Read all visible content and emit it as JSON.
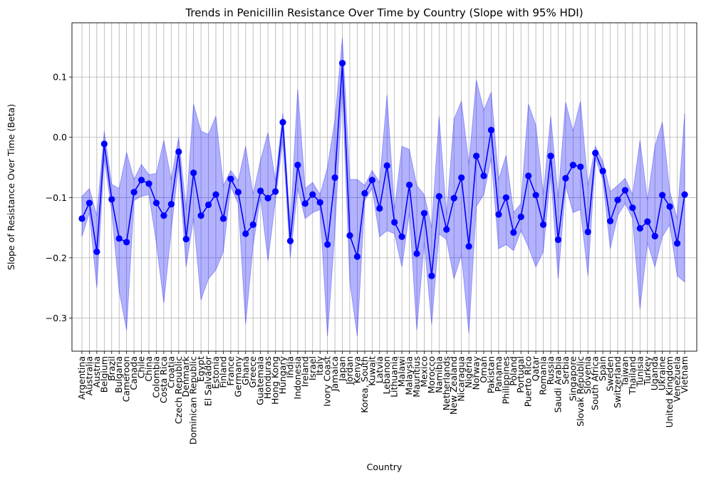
{
  "chart_data": {
    "type": "line",
    "title": "Trends in Penicillin Resistance Over Time by Country (Slope with 95% HDI)",
    "xlabel": "Country",
    "ylabel": "Slope of Resistance Over Time (Beta)",
    "ylim": [
      -0.355,
      0.19
    ],
    "yticks": [
      0.1,
      0.0,
      -0.1,
      -0.2,
      -0.3
    ],
    "ytick_labels": [
      "0.1",
      "0.0",
      "−0.1",
      "−0.2",
      "−0.3"
    ],
    "grid": true,
    "line_color": "#0000ff",
    "band_color": "#0000ff",
    "categories": [
      "Argentina",
      "Australia",
      "Austria",
      "Belgium",
      "Brazil",
      "Bulgaria",
      "Cameroon",
      "Canada",
      "Chile",
      "China",
      "Colombia",
      "Costa Rica",
      "Croatia",
      "Czech Republic",
      "Denmark",
      "Dominican Republic",
      "Egypt",
      "El Salvador",
      "Estonia",
      "Finland",
      "France",
      "Germany",
      "Ghana",
      "Greece",
      "Guatemala",
      "Honduras",
      "Hong Kong",
      "Hungary",
      "India",
      "Indonesia",
      "Ireland",
      "Israel",
      "Italy",
      "Ivory Coast",
      "Jamaica",
      "Japan",
      "Jordan",
      "Kenya",
      "Korea, South",
      "Kuwait",
      "Latvia",
      "Lebanon",
      "Lithuania",
      "Malawi",
      "Malaysia",
      "Mauritius",
      "Mexico",
      "Morocco",
      "Namibia",
      "Netherlands",
      "New Zealand",
      "Nicaragua",
      "Nigeria",
      "Norway",
      "Oman",
      "Pakistan",
      "Panama",
      "Philippines",
      "Poland",
      "Portugal",
      "Puerto Rico",
      "Qatar",
      "Romania",
      "Russia",
      "Saudi Arabia",
      "Serbia",
      "Singapore",
      "Slovak Republic",
      "Slovenia",
      "South Africa",
      "Spain",
      "Sweden",
      "Switzerland",
      "Taiwan",
      "Thailand",
      "Tunisia",
      "Turkey",
      "Uganda",
      "Ukraine",
      "United Kingdom",
      "Venezuela",
      "Vietnam"
    ],
    "series": [
      {
        "values": [
          -0.135,
          -0.109,
          -0.19,
          -0.011,
          -0.103,
          -0.168,
          -0.174,
          -0.091,
          -0.071,
          -0.077,
          -0.109,
          -0.13,
          -0.111,
          -0.024,
          -0.169,
          -0.059,
          -0.13,
          -0.112,
          -0.095,
          -0.135,
          -0.069,
          -0.091,
          -0.16,
          -0.145,
          -0.089,
          -0.101,
          -0.09,
          0.025,
          -0.172,
          -0.046,
          -0.11,
          -0.095,
          -0.108,
          -0.178,
          -0.067,
          0.123,
          -0.163,
          -0.198,
          -0.093,
          -0.071,
          -0.118,
          -0.047,
          -0.141,
          -0.165,
          -0.079,
          -0.193,
          -0.126,
          -0.23,
          -0.098,
          -0.153,
          -0.101,
          -0.067,
          -0.181,
          -0.031,
          -0.064,
          0.012,
          -0.128,
          -0.1,
          -0.158,
          -0.132,
          -0.064,
          -0.096,
          -0.145,
          -0.031,
          -0.17,
          -0.068,
          -0.046,
          -0.049,
          -0.157,
          -0.026,
          -0.056,
          -0.139,
          -0.104,
          -0.088,
          -0.117,
          -0.151,
          -0.14,
          -0.164,
          -0.096,
          -0.115,
          -0.176,
          -0.095
        ],
        "hdi_lower": [
          -0.165,
          -0.125,
          -0.25,
          -0.035,
          -0.123,
          -0.255,
          -0.32,
          -0.105,
          -0.098,
          -0.095,
          -0.175,
          -0.275,
          -0.155,
          -0.045,
          -0.215,
          -0.135,
          -0.27,
          -0.235,
          -0.22,
          -0.19,
          -0.082,
          -0.11,
          -0.31,
          -0.18,
          -0.1,
          -0.205,
          -0.105,
          -0.005,
          -0.2,
          -0.085,
          -0.135,
          -0.125,
          -0.12,
          -0.33,
          -0.155,
          0.078,
          -0.24,
          -0.33,
          -0.105,
          -0.085,
          -0.165,
          -0.155,
          -0.16,
          -0.215,
          -0.125,
          -0.32,
          -0.175,
          -0.31,
          -0.16,
          -0.17,
          -0.235,
          -0.195,
          -0.325,
          -0.115,
          -0.095,
          -0.035,
          -0.185,
          -0.178,
          -0.188,
          -0.155,
          -0.182,
          -0.215,
          -0.19,
          -0.06,
          -0.235,
          -0.08,
          -0.125,
          -0.12,
          -0.23,
          -0.035,
          -0.07,
          -0.185,
          -0.13,
          -0.11,
          -0.135,
          -0.285,
          -0.175,
          -0.215,
          -0.165,
          -0.145,
          -0.23,
          -0.24
        ],
        "hdi_upper": [
          -0.098,
          -0.085,
          -0.13,
          0.01,
          -0.078,
          -0.085,
          -0.025,
          -0.07,
          -0.045,
          -0.062,
          -0.06,
          -0.005,
          -0.07,
          0.0,
          -0.12,
          0.055,
          0.01,
          0.005,
          0.035,
          -0.08,
          -0.055,
          -0.072,
          -0.015,
          -0.095,
          -0.038,
          0.008,
          -0.072,
          0.04,
          -0.145,
          0.08,
          -0.085,
          -0.075,
          -0.095,
          -0.05,
          0.03,
          0.165,
          -0.07,
          -0.07,
          -0.08,
          -0.055,
          -0.075,
          0.07,
          -0.12,
          -0.015,
          -0.02,
          -0.08,
          -0.095,
          -0.15,
          0.035,
          -0.13,
          0.03,
          0.06,
          -0.045,
          0.095,
          0.045,
          0.075,
          -0.07,
          -0.03,
          -0.125,
          -0.11,
          0.055,
          0.02,
          -0.095,
          0.035,
          -0.1,
          0.058,
          0.01,
          0.06,
          -0.08,
          -0.015,
          -0.04,
          -0.09,
          -0.08,
          -0.068,
          -0.095,
          -0.005,
          -0.105,
          -0.015,
          0.025,
          -0.09,
          -0.135,
          0.04
        ]
      }
    ]
  }
}
